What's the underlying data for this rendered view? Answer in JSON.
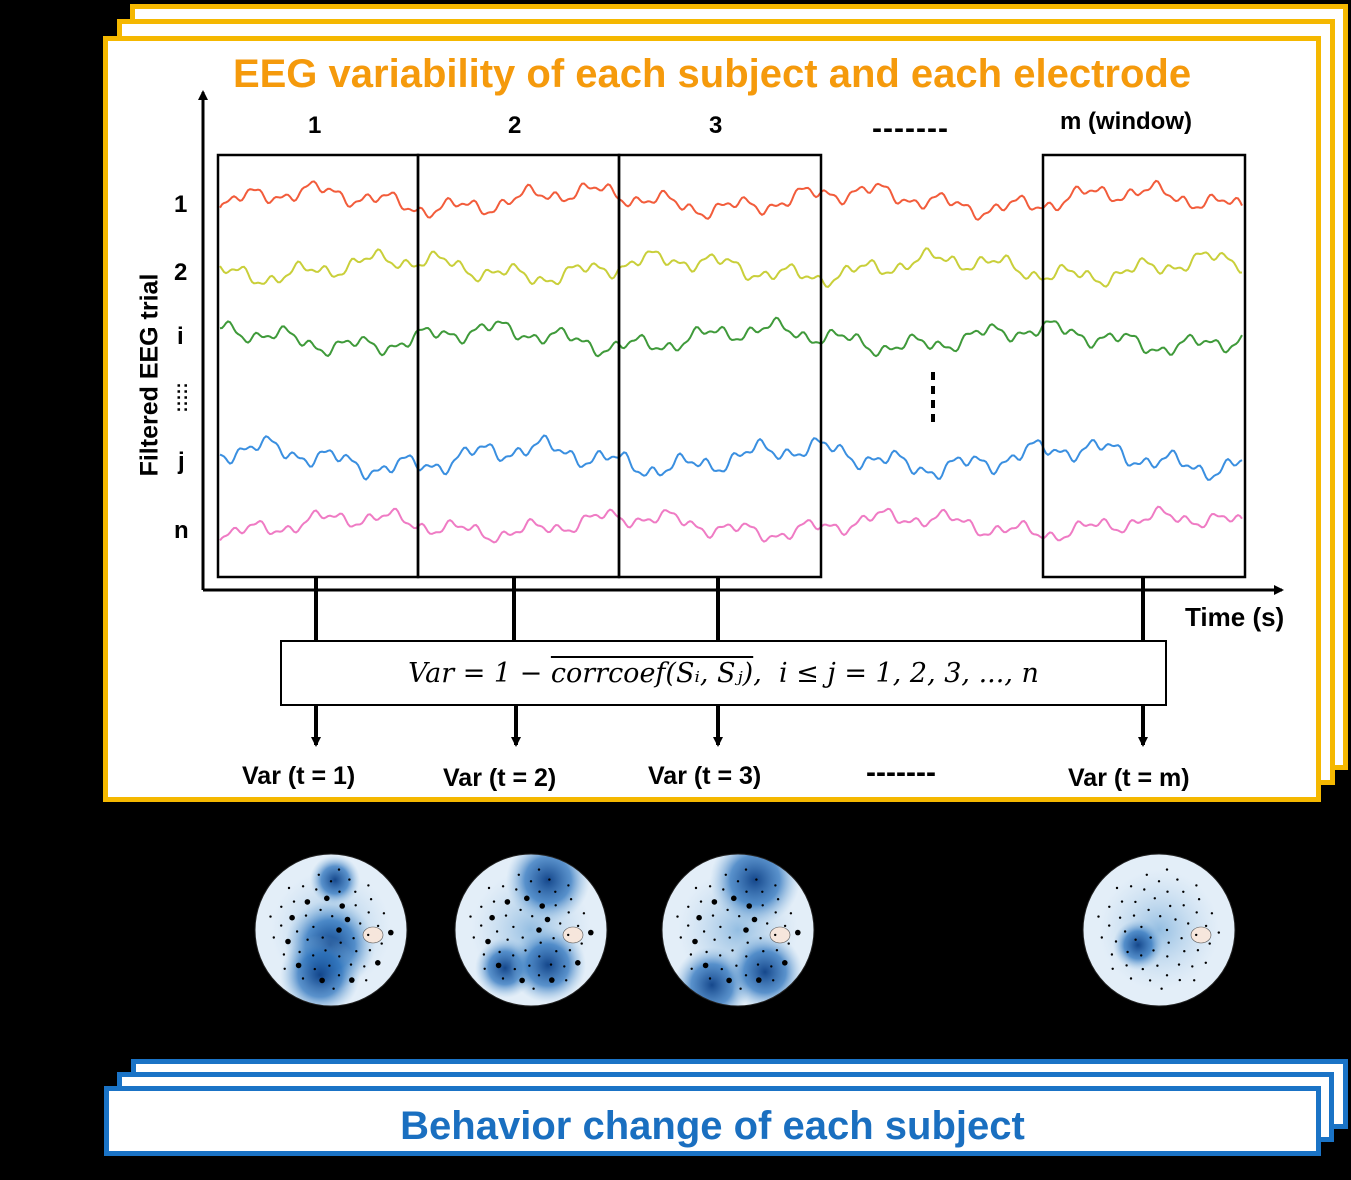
{
  "title": "EEG variability of each subject and each electrode",
  "y_axis_label": "Filtered EEG trial",
  "x_axis_label": "Time (s)",
  "window_labels": [
    "1",
    "2",
    "3",
    "-------",
    "m (window)"
  ],
  "trial_labels": [
    "1",
    "2",
    "i",
    ":::::",
    "j",
    "n"
  ],
  "formula": {
    "lhs": "Var = 1 − ",
    "overlined": "corrcoef(Sᵢ, Sⱼ)",
    "rhs": ",  i ≤ j = 1, 2, 3, ..., n"
  },
  "var_labels": [
    "Var (t = 1)",
    "Var (t = 2)",
    "Var (t = 3)",
    "-------",
    "Var (t = m)"
  ],
  "bottom_title": "Behavior change of each subject",
  "colors": {
    "frame_orange": "#f5b800",
    "title_orange": "#f59a0c",
    "frame_blue": "#1a73c6",
    "title_blue": "#1a6fc0",
    "trace_1": "#f25c3b",
    "trace_2": "#c9cf3a",
    "trace_i": "#3f9a3a",
    "trace_j": "#3a8fe0",
    "trace_n": "#ef7bc4",
    "topomap_blue": "#1f5fa8"
  }
}
